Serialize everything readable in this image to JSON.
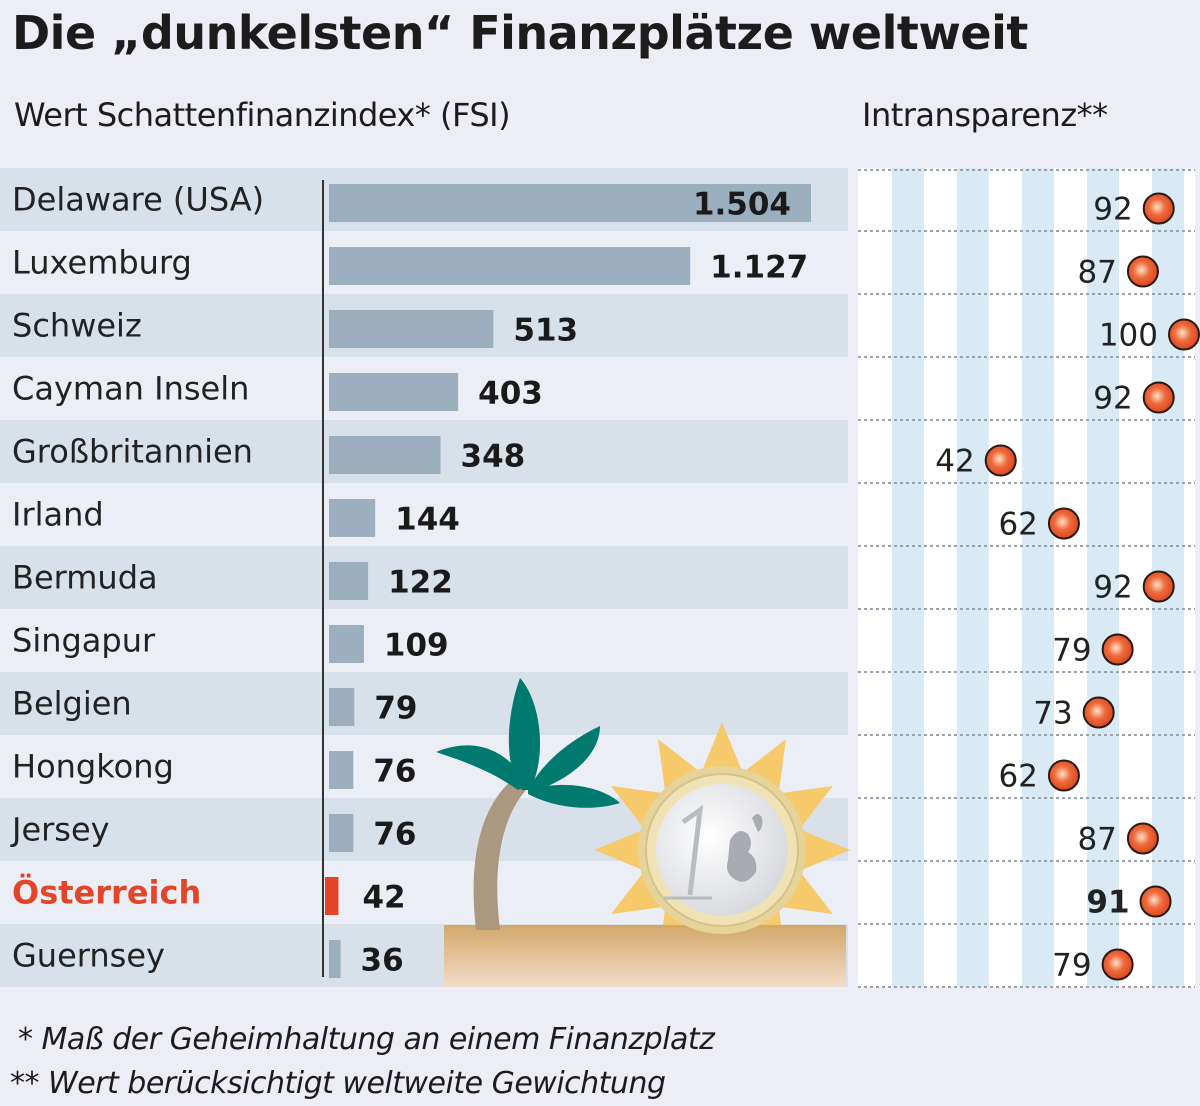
{
  "title": "Die „dunkelsten“ Finanzplätze weltweit",
  "subtitle_left": "Wert Schattenfinanzindex* (FSI)",
  "subtitle_right": "Intransparenz**",
  "footnotes": [
    "* Maß der Geheimhaltung an einem Finanzplatz",
    "** Wert berücksichtigt weltweite Gewichtung"
  ],
  "colors": {
    "bar": "#9cafbf",
    "bar_highlight": "#e2452a",
    "row_dark": "#d8e0ea",
    "row_light": "#eceef6",
    "dot": "#e8522a",
    "stripe": "#daeaf4",
    "highlight_text": "#e2452a"
  },
  "illustration": {
    "palm-tree-icon": "palm tree",
    "sun-icon": "sun",
    "euro-coin-icon": "1 euro coin",
    "sand-icon": "sand"
  },
  "chart_data": {
    "type": "bar",
    "title": "Die „dunkelsten“ Finanzplätze weltweit",
    "xlabel": "",
    "ylabel": "",
    "categories": [
      "Delaware (USA)",
      "Luxemburg",
      "Schweiz",
      "Cayman Inseln",
      "Großbritannien",
      "Irland",
      "Bermuda",
      "Singapur",
      "Belgien",
      "Hongkong",
      "Jersey",
      "Österreich",
      "Guernsey"
    ],
    "highlight": "Österreich",
    "series": [
      {
        "name": "Wert Schattenfinanzindex* (FSI)",
        "type": "bar",
        "values": [
          1504,
          1127,
          513,
          403,
          348,
          144,
          122,
          109,
          79,
          76,
          76,
          42,
          36
        ],
        "labels": [
          "1.504",
          "1.127",
          "513",
          "403",
          "348",
          "144",
          "122",
          "109",
          "79",
          "76",
          "76",
          "42",
          "36"
        ],
        "xlim": [
          0,
          1504
        ]
      },
      {
        "name": "Intransparenz**",
        "type": "dot",
        "values": [
          92,
          87,
          100,
          92,
          42,
          62,
          92,
          79,
          73,
          62,
          87,
          91,
          79
        ],
        "xlim": [
          0,
          100
        ]
      }
    ],
    "grid": false,
    "legend": "none"
  }
}
